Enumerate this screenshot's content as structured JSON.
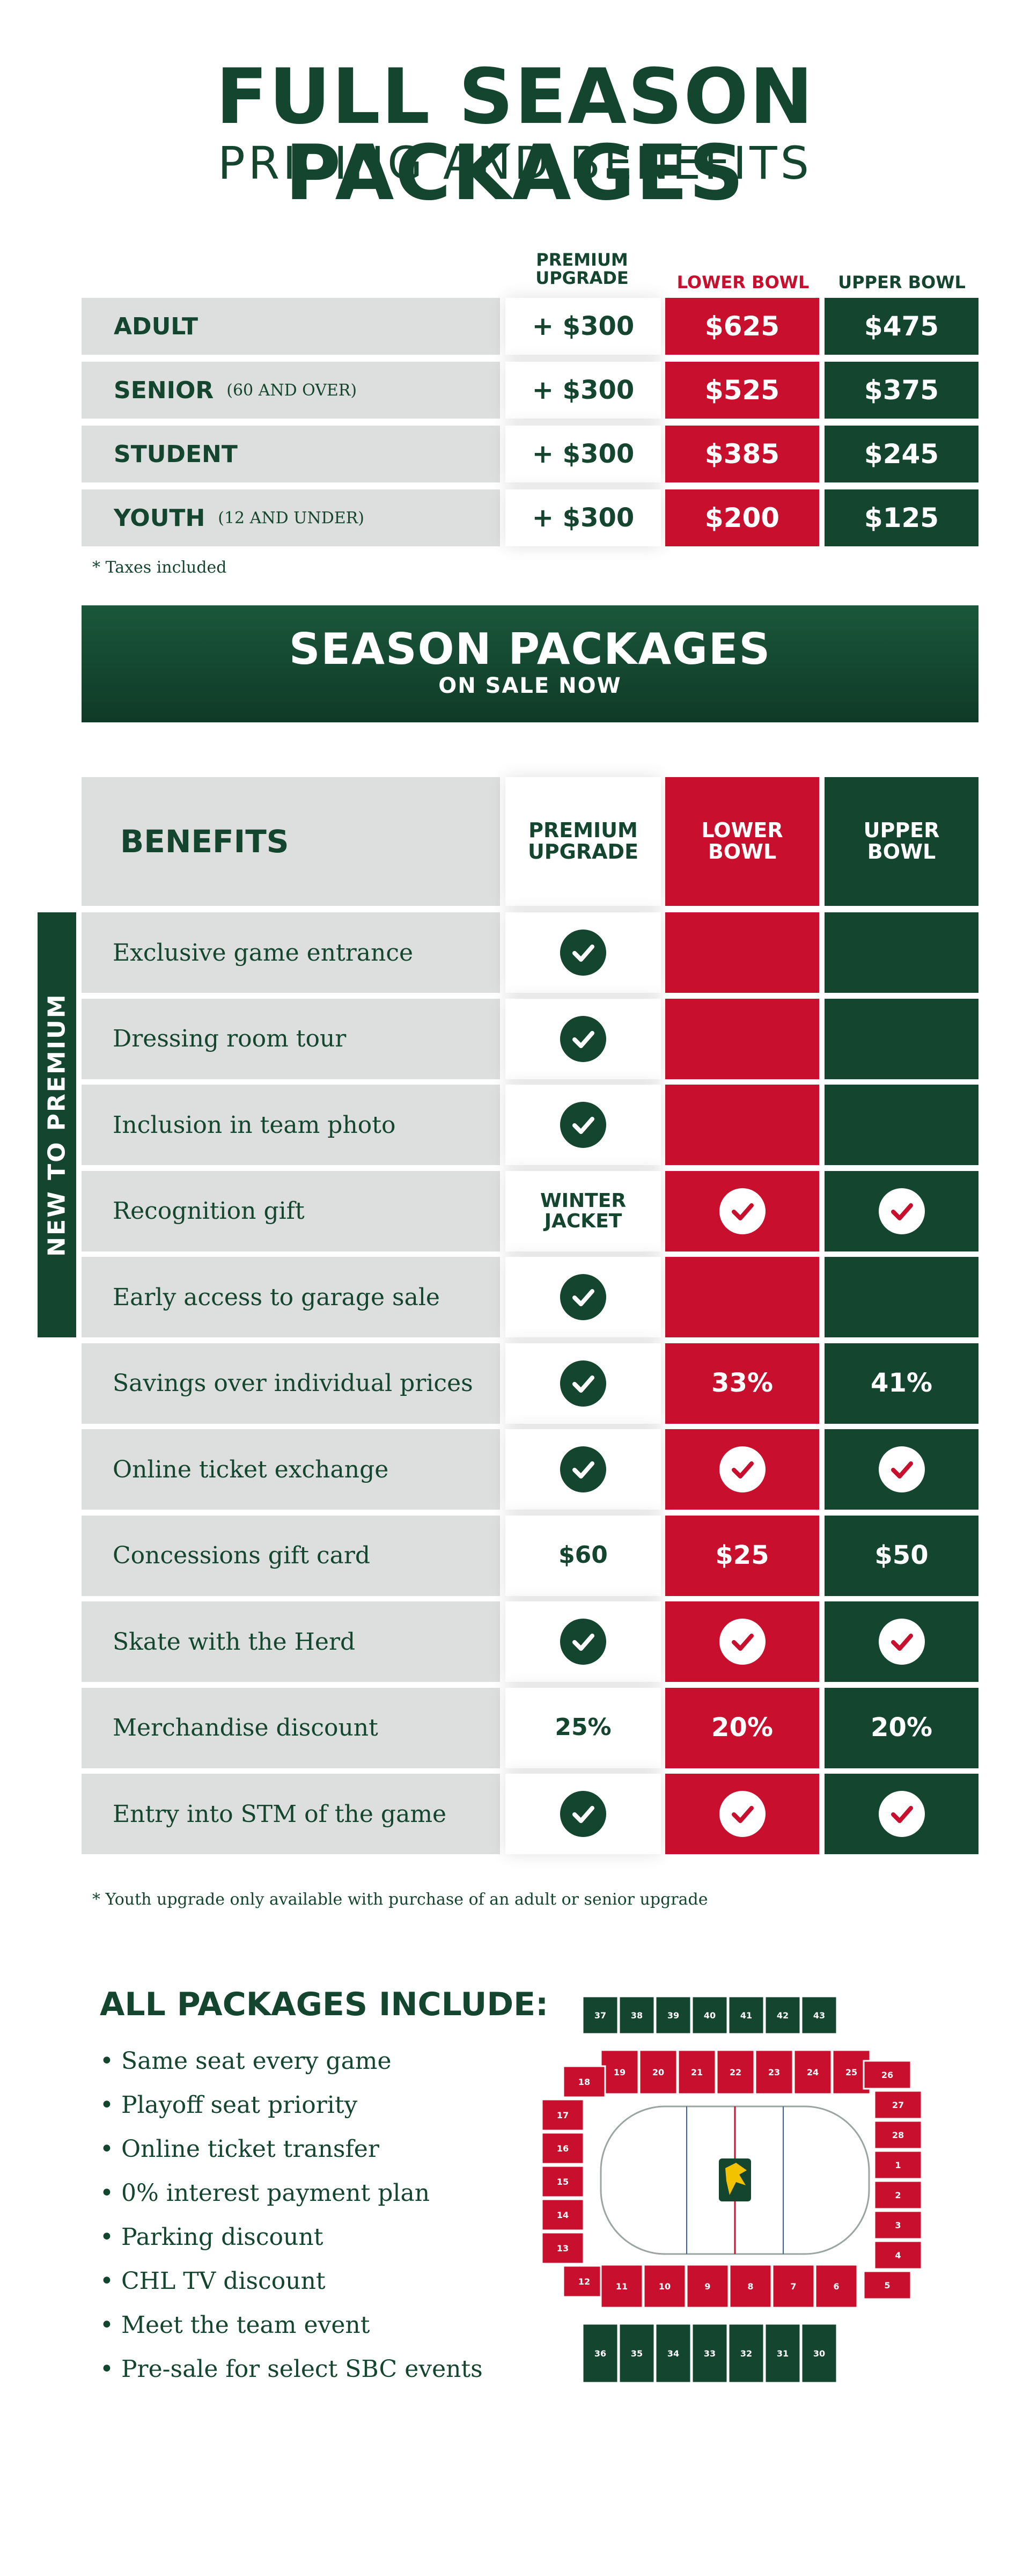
{
  "header": {
    "title": "FULL SEASON PACKAGES",
    "subtitle": "PRICING AND BENEFITS"
  },
  "pricing": {
    "columns": {
      "premium": "PREMIUM\nUPGRADE",
      "lower": "LOWER BOWL",
      "upper": "UPPER BOWL"
    },
    "rows": [
      {
        "name": "ADULT",
        "note": "",
        "premium": "+ $300",
        "lower": "$625",
        "upper": "$475"
      },
      {
        "name": "SENIOR",
        "note": "(60 AND OVER)",
        "premium": "+ $300",
        "lower": "$525",
        "upper": "$375"
      },
      {
        "name": "STUDENT",
        "note": "",
        "premium": "+ $300",
        "lower": "$385",
        "upper": "$245"
      },
      {
        "name": "YOUTH",
        "note": "(12 AND UNDER)",
        "premium": "+ $300",
        "lower": "$200",
        "upper": "$125"
      }
    ],
    "footnote": "* Taxes included"
  },
  "banner": {
    "line1": "SEASON PACKAGES",
    "line2": "ON SALE NOW"
  },
  "benefits": {
    "heading": "BENEFITS",
    "columns": {
      "premium": "PREMIUM\nUPGRADE",
      "lower": "LOWER\nBOWL",
      "upper": "UPPER\nBOWL"
    },
    "sidebar_label": "NEW TO PREMIUM",
    "rows": [
      {
        "label": "Exclusive game entrance",
        "premium": "check",
        "lower": "",
        "upper": ""
      },
      {
        "label": "Dressing room tour",
        "premium": "check",
        "lower": "",
        "upper": ""
      },
      {
        "label": "Inclusion in team photo",
        "premium": "check",
        "lower": "",
        "upper": ""
      },
      {
        "label": "Recognition gift",
        "premium": "WINTER\nJACKET",
        "lower": "check",
        "upper": "check"
      },
      {
        "label": "Early access to garage sale",
        "premium": "check",
        "lower": "",
        "upper": ""
      },
      {
        "label": "Savings over individual prices",
        "premium": "check",
        "lower": "33%",
        "upper": "41%"
      },
      {
        "label": "Online ticket exchange",
        "premium": "check",
        "lower": "check",
        "upper": "check"
      },
      {
        "label": "Concessions gift card",
        "premium": "$60",
        "lower": "$25",
        "upper": "$50"
      },
      {
        "label": "Skate with the Herd",
        "premium": "check",
        "lower": "check",
        "upper": "check"
      },
      {
        "label": "Merchandise discount",
        "premium": "25%",
        "lower": "20%",
        "upper": "20%"
      },
      {
        "label": "Entry into STM of the game",
        "premium": "check",
        "lower": "check",
        "upper": "check"
      }
    ],
    "footnote": "* Youth upgrade only available with purchase of an adult or senior upgrade"
  },
  "includes": {
    "title": "ALL PACKAGES INCLUDE:",
    "items": [
      "Same seat every game",
      "Playoff seat priority",
      "Online ticket transfer",
      "0% interest payment plan",
      "Parking discount",
      "CHL TV discount",
      "Meet the team event",
      "Pre-sale for select SBC events"
    ]
  },
  "seating_map": {
    "upper_top": [
      "37",
      "38",
      "39",
      "40",
      "41",
      "42",
      "43"
    ],
    "lower_top": [
      "19",
      "20",
      "21",
      "22",
      "23",
      "24",
      "25"
    ],
    "left": [
      "18",
      "17",
      "16",
      "15",
      "14",
      "13",
      "12"
    ],
    "right": [
      "26",
      "27",
      "28",
      "1",
      "2",
      "3",
      "4",
      "5"
    ],
    "lower_bottom": [
      "11",
      "10",
      "9",
      "8",
      "7",
      "6"
    ],
    "upper_bottom": [
      "36",
      "35",
      "34",
      "33",
      "32",
      "31",
      "30"
    ]
  },
  "colors": {
    "green": "#14452f",
    "red": "#c8102e",
    "grey": "#dcdfde"
  }
}
